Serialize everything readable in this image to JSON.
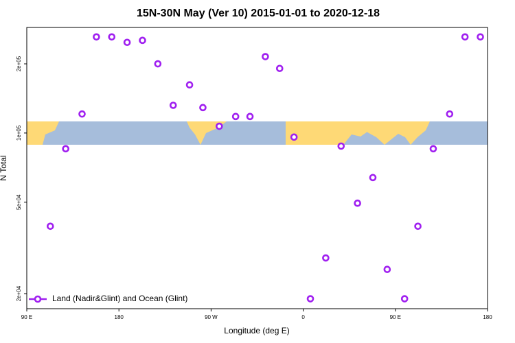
{
  "chart_data": {
    "type": "scatter",
    "title": "15N-30N May (Ver 10)   2015-01-01 to 2020-12-18",
    "x_label": "Longitude (deg E)",
    "y_label": "N Total",
    "log_y": true,
    "legend": "lower left",
    "xlim": [
      90,
      540
    ],
    "ylim": [
      17200,
      288000
    ],
    "xticks": [
      {
        "value": 90,
        "label": "90 E"
      },
      {
        "value": 180,
        "label": "180"
      },
      {
        "value": 270,
        "label": "90 W"
      },
      {
        "value": 360,
        "label": "0"
      },
      {
        "value": 450,
        "label": "90 E"
      },
      {
        "value": 540,
        "label": "180"
      }
    ],
    "yticks": [
      {
        "value": 20000,
        "label": "2e+04"
      },
      {
        "value": 50000,
        "label": "5e+04"
      },
      {
        "value": 100000,
        "label": "1e+05"
      },
      {
        "value": 200000,
        "label": "2e+05"
      }
    ],
    "series": [
      {
        "name": "Land (Nadir&Glint) and Ocean (Glint)",
        "color": "#a020f0",
        "x": [
          113,
          128,
          144,
          158,
          173,
          188,
          203,
          218,
          233,
          249,
          262,
          278,
          294,
          308,
          323,
          337,
          351,
          367,
          382,
          397,
          413,
          428,
          442,
          459,
          472,
          487,
          503,
          518,
          533
        ],
        "values": [
          39300,
          85400,
          121000,
          262000,
          262000,
          248000,
          253000,
          200000,
          132000,
          162000,
          129000,
          107000,
          118000,
          118000,
          215000,
          191000,
          96000,
          19000,
          28600,
          87700,
          49500,
          64000,
          25500,
          19000,
          39300,
          85400,
          121000,
          262000,
          262000
        ]
      }
    ]
  }
}
